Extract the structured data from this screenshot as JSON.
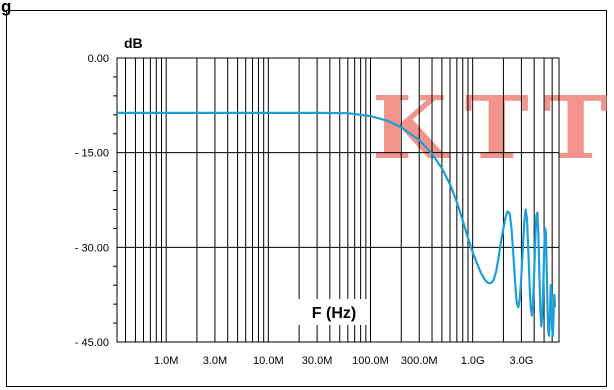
{
  "chart_data": {
    "type": "line",
    "title": "",
    "ylabel": "dB",
    "xlabel": "F (Hz)",
    "xscale": "log",
    "xlim": [
      330000,
      7000000000
    ],
    "ylim": [
      -45,
      0
    ],
    "grid": true,
    "yticks": [
      {
        "value": 0,
        "label": "0.00"
      },
      {
        "value": -15,
        "label": "- 15.00"
      },
      {
        "value": -30,
        "label": "- 30.00"
      },
      {
        "value": -45,
        "label": "- 45.00"
      }
    ],
    "xticks": [
      {
        "value": 1000000,
        "label": "1.0M"
      },
      {
        "value": 3000000,
        "label": "3.0M"
      },
      {
        "value": 10000000,
        "label": "10.0M"
      },
      {
        "value": 30000000,
        "label": "30.0M"
      },
      {
        "value": 100000000,
        "label": "100.0M"
      },
      {
        "value": 300000000,
        "label": "300.0M"
      },
      {
        "value": 1000000000,
        "label": "1.0G"
      },
      {
        "value": 3000000000,
        "label": "3.0G"
      }
    ],
    "series": [
      {
        "color": "#1a9fd8",
        "points": [
          [
            330000,
            -8.7
          ],
          [
            1000000,
            -8.7
          ],
          [
            10000000,
            -8.7
          ],
          [
            30000000,
            -8.7
          ],
          [
            60000000,
            -8.75
          ],
          [
            100000000,
            -9.2
          ],
          [
            150000000,
            -10.0
          ],
          [
            200000000,
            -11.0
          ],
          [
            300000000,
            -13.0
          ],
          [
            400000000,
            -15.2
          ],
          [
            500000000,
            -17.5
          ],
          [
            600000000,
            -20.0
          ],
          [
            700000000,
            -22.8
          ],
          [
            800000000,
            -25.8
          ],
          [
            900000000,
            -28.5
          ],
          [
            1000000000,
            -30.8
          ],
          [
            1100000000,
            -32.5
          ],
          [
            1200000000,
            -34.0
          ],
          [
            1300000000,
            -35.0
          ],
          [
            1400000000,
            -35.6
          ],
          [
            1500000000,
            -35.7
          ],
          [
            1600000000,
            -35.2
          ],
          [
            1700000000,
            -33.8
          ],
          [
            1800000000,
            -31.5
          ],
          [
            1900000000,
            -29.0
          ],
          [
            2000000000,
            -27.0
          ],
          [
            2100000000,
            -25.2
          ],
          [
            2200000000,
            -24.3
          ],
          [
            2300000000,
            -24.6
          ],
          [
            2400000000,
            -27.0
          ],
          [
            2500000000,
            -31.0
          ],
          [
            2600000000,
            -35.5
          ],
          [
            2700000000,
            -38.8
          ],
          [
            2800000000,
            -39.5
          ],
          [
            2900000000,
            -38.0
          ],
          [
            3000000000,
            -34.5
          ],
          [
            3100000000,
            -30.0
          ],
          [
            3200000000,
            -26.0
          ],
          [
            3300000000,
            -24.0
          ],
          [
            3400000000,
            -25.5
          ],
          [
            3500000000,
            -30.0
          ],
          [
            3600000000,
            -35.5
          ],
          [
            3700000000,
            -39.5
          ],
          [
            3800000000,
            -40.8
          ],
          [
            3900000000,
            -39.0
          ],
          [
            4000000000,
            -34.0
          ],
          [
            4100000000,
            -28.5
          ],
          [
            4200000000,
            -25.0
          ],
          [
            4300000000,
            -24.5
          ],
          [
            4400000000,
            -28.0
          ],
          [
            4500000000,
            -34.5
          ],
          [
            4600000000,
            -40.0
          ],
          [
            4700000000,
            -42.5
          ],
          [
            4800000000,
            -41.0
          ],
          [
            4900000000,
            -36.5
          ],
          [
            5000000000,
            -31.0
          ],
          [
            5100000000,
            -27.0
          ],
          [
            5200000000,
            -27.5
          ],
          [
            5300000000,
            -33.0
          ],
          [
            5400000000,
            -39.5
          ],
          [
            5500000000,
            -43.5
          ],
          [
            5600000000,
            -44.0
          ],
          [
            5700000000,
            -41.0
          ],
          [
            5800000000,
            -36.0
          ],
          [
            5900000000,
            -38.5
          ],
          [
            6000000000,
            -43.0
          ],
          [
            6100000000,
            -44.0
          ],
          [
            6200000000,
            -40.5
          ],
          [
            6300000000,
            -37.5
          ],
          [
            6400000000,
            -39.5
          ]
        ]
      }
    ]
  },
  "watermark": {
    "text": "KTT",
    "color": "#f08a80"
  },
  "figure_label": {
    "text": "g"
  }
}
